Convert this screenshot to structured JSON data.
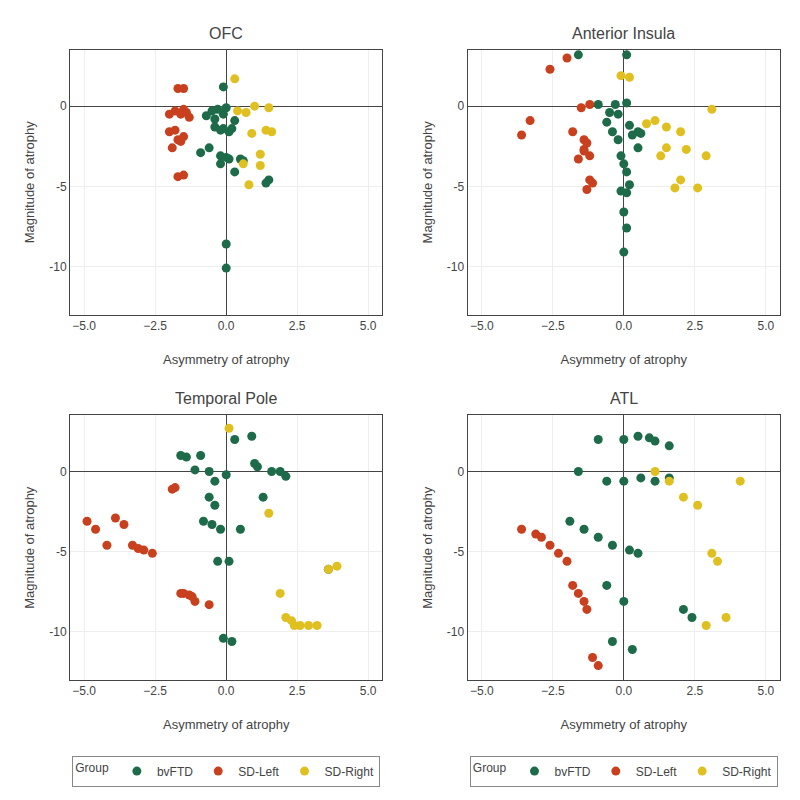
{
  "chart_data": [
    {
      "type": "scatter",
      "title": "OFC",
      "xlabel": "Asymmetry of atrophy",
      "ylabel": "Magnitude of atrophy",
      "xlim": [
        -5.5,
        5.5
      ],
      "ylim": [
        -13.0,
        3.5
      ],
      "xticks": [
        {
          "value": -5.0,
          "label": "−5.0"
        },
        {
          "value": -2.5,
          "label": "−2.5"
        },
        {
          "value": 0.0,
          "label": "0.0"
        },
        {
          "value": 2.5,
          "label": "2.5"
        },
        {
          "value": 5.0,
          "label": "5.0"
        }
      ],
      "yticks": [
        -10,
        -5,
        0
      ],
      "grid": true,
      "series": [
        {
          "name": "bvFTD",
          "color": "#1E6B4A",
          "x": [
            -0.1,
            0.0,
            -0.3,
            -0.5,
            -0.1,
            -0.7,
            -0.4,
            0.3,
            -0.4,
            -0.1,
            0.2,
            -0.2,
            0.1,
            -0.6,
            -0.9,
            -0.2,
            0.0,
            0.1,
            0.5,
            0.6,
            -0.2,
            0.3,
            1.5,
            1.4,
            0.0,
            0.0
          ],
          "values": [
            1.2,
            -0.1,
            -0.2,
            -0.3,
            -0.5,
            -0.6,
            -0.8,
            -0.9,
            -1.3,
            -1.4,
            -1.4,
            -1.5,
            -1.6,
            -2.6,
            -2.9,
            -3.1,
            -3.2,
            -3.3,
            -3.3,
            -3.4,
            -3.6,
            -4.1,
            -4.6,
            -4.8,
            -8.6,
            -10.1
          ]
        },
        {
          "name": "SD-Left",
          "color": "#C8401E",
          "x": [
            -1.7,
            -1.5,
            -1.5,
            -1.8,
            -1.6,
            -2.0,
            -1.4,
            -1.3,
            -1.8,
            -2.0,
            -1.5,
            -1.7,
            -1.6,
            -1.9,
            -1.5,
            -1.7
          ],
          "values": [
            1.1,
            1.1,
            -0.2,
            -0.3,
            -0.5,
            -0.5,
            -0.4,
            -0.7,
            -1.5,
            -1.6,
            -1.9,
            -2.1,
            -2.2,
            -2.6,
            -4.3,
            -4.4
          ]
        },
        {
          "name": "SD-Right",
          "color": "#E0C020",
          "x": [
            0.3,
            1.0,
            1.5,
            0.4,
            0.7,
            1.4,
            1.6,
            0.9,
            1.2,
            0.6,
            1.2,
            0.8
          ],
          "values": [
            1.7,
            -0.0,
            -0.1,
            -0.3,
            -0.4,
            -1.5,
            -1.6,
            -1.7,
            -3.0,
            -3.6,
            -3.7,
            -4.9
          ]
        }
      ]
    },
    {
      "type": "scatter",
      "title": "Anterior Insula",
      "xlabel": "Asymmetry of atrophy",
      "ylabel": "Magnitude of atrophy",
      "xlim": [
        -5.5,
        5.5
      ],
      "ylim": [
        -13.0,
        3.5
      ],
      "xticks": [
        {
          "value": -5.0,
          "label": "−5.0"
        },
        {
          "value": -2.5,
          "label": "−2.5"
        },
        {
          "value": 0.0,
          "label": "0.0"
        },
        {
          "value": 2.5,
          "label": "2.5"
        },
        {
          "value": 5.0,
          "label": "5.0"
        }
      ],
      "yticks": [
        -10,
        -5,
        0
      ],
      "grid": true,
      "series": [
        {
          "name": "bvFTD",
          "color": "#1E6B4A",
          "x": [
            -1.6,
            0.1,
            -0.9,
            -0.3,
            0.1,
            -0.5,
            -0.2,
            -0.6,
            0.2,
            -0.4,
            0.5,
            0.6,
            0.3,
            -0.2,
            0.5,
            -0.1,
            0.0,
            0.1,
            0.2,
            -0.1,
            0.1,
            0.0,
            0.1,
            0.0
          ],
          "values": [
            3.2,
            3.2,
            0.1,
            0.1,
            0.2,
            -0.4,
            -0.5,
            -1.0,
            -1.2,
            -1.6,
            -1.6,
            -1.7,
            -1.8,
            -2.1,
            -2.6,
            -3.1,
            -3.6,
            -4.1,
            -4.9,
            -5.3,
            -5.4,
            -6.6,
            -7.6,
            -9.1
          ]
        },
        {
          "name": "SD-Left",
          "color": "#C8401E",
          "x": [
            -2.6,
            -2.0,
            -3.3,
            -1.5,
            -1.2,
            -1.8,
            -3.6,
            -1.4,
            -1.3,
            -1.4,
            -1.4,
            -1.2,
            -1.6,
            -1.2,
            -1.1,
            -1.3
          ],
          "values": [
            2.3,
            3.0,
            -0.9,
            -0.1,
            0.1,
            -1.6,
            -1.8,
            -2.1,
            -2.3,
            -2.7,
            -2.8,
            -3.1,
            -3.3,
            -4.6,
            -4.8,
            -5.2
          ]
        },
        {
          "name": "SD-Right",
          "color": "#E0C020",
          "x": [
            -0.1,
            0.2,
            1.1,
            0.8,
            1.5,
            2.0,
            3.1,
            1.5,
            2.2,
            1.3,
            2.9,
            2.0,
            1.8,
            2.6
          ],
          "values": [
            1.9,
            1.8,
            -0.9,
            -1.1,
            -1.3,
            -1.6,
            -0.2,
            -2.6,
            -2.7,
            -3.1,
            -3.1,
            -4.6,
            -5.1,
            -5.1
          ]
        }
      ]
    },
    {
      "type": "scatter",
      "title": "Temporal Pole",
      "xlabel": "Asymmetry of atrophy",
      "ylabel": "Magnitude of atrophy",
      "xlim": [
        -5.5,
        5.5
      ],
      "ylim": [
        -13.0,
        3.5
      ],
      "xticks": [
        {
          "value": -5.0,
          "label": "−5.0"
        },
        {
          "value": -2.5,
          "label": "−2.5"
        },
        {
          "value": 0.0,
          "label": "0.0"
        },
        {
          "value": 2.5,
          "label": "2.5"
        },
        {
          "value": 5.0,
          "label": "5.0"
        }
      ],
      "yticks": [
        -10,
        -5,
        0
      ],
      "grid": true,
      "legend": "bottom",
      "legend_title": "Group",
      "series": [
        {
          "name": "bvFTD",
          "color": "#1E6B4A",
          "x": [
            -1.6,
            -1.4,
            -0.9,
            -0.6,
            -1.1,
            0.0,
            -0.4,
            0.3,
            0.9,
            -0.6,
            -0.4,
            -0.8,
            -0.5,
            -0.2,
            -0.3,
            0.1,
            0.5,
            1.0,
            1.1,
            1.3,
            1.6,
            1.9,
            2.1,
            3.6,
            -0.1,
            0.2
          ],
          "values": [
            1.0,
            0.9,
            1.0,
            0.0,
            0.1,
            -0.2,
            -0.6,
            2.0,
            2.2,
            -1.6,
            -2.1,
            -3.1,
            -3.3,
            -3.6,
            -5.6,
            -5.6,
            -3.6,
            0.5,
            0.3,
            -1.6,
            0.0,
            0.0,
            -0.3,
            -6.1,
            -10.4,
            -10.6
          ]
        },
        {
          "name": "SD-Left",
          "color": "#C8401E",
          "x": [
            -4.9,
            -4.6,
            -4.2,
            -3.9,
            -3.6,
            -3.3,
            -3.1,
            -2.9,
            -2.6,
            -1.9,
            -1.8,
            -1.6,
            -1.5,
            -1.3,
            -1.2,
            -1.1,
            -0.6
          ],
          "values": [
            -3.1,
            -3.6,
            -4.6,
            -2.9,
            -3.3,
            -4.6,
            -4.8,
            -4.9,
            -5.1,
            -1.1,
            -1.0,
            -7.6,
            -7.6,
            -7.7,
            -7.8,
            -8.1,
            -8.3
          ]
        },
        {
          "name": "SD-Right",
          "color": "#E0C020",
          "x": [
            0.1,
            1.5,
            1.9,
            2.1,
            2.3,
            2.4,
            2.6,
            2.9,
            3.2,
            3.6,
            3.9
          ],
          "values": [
            2.7,
            -2.6,
            -7.6,
            -9.1,
            -9.3,
            -9.6,
            -9.6,
            -9.6,
            -9.6,
            -6.1,
            -5.9
          ]
        }
      ]
    },
    {
      "type": "scatter",
      "title": "ATL",
      "xlabel": "Asymmetry of atrophy",
      "ylabel": "Magnitude of atrophy",
      "xlim": [
        -5.5,
        5.5
      ],
      "ylim": [
        -13.0,
        3.5
      ],
      "xticks": [
        {
          "value": -5.0,
          "label": "−5.0"
        },
        {
          "value": -2.5,
          "label": "−2.5"
        },
        {
          "value": 0.0,
          "label": "0.0"
        },
        {
          "value": 2.5,
          "label": "2.5"
        },
        {
          "value": 5.0,
          "label": "5.0"
        }
      ],
      "yticks": [
        -10,
        -5,
        0
      ],
      "grid": true,
      "legend": "bottom",
      "legend_title": "Group",
      "series": [
        {
          "name": "bvFTD",
          "color": "#1E6B4A",
          "x": [
            -0.9,
            0.0,
            0.5,
            0.9,
            1.1,
            1.6,
            -1.6,
            -0.6,
            0.0,
            0.6,
            1.1,
            1.6,
            -1.9,
            -1.4,
            -0.9,
            -0.4,
            0.2,
            0.5,
            -0.6,
            0.0,
            -0.4,
            0.3,
            2.1,
            2.4
          ],
          "values": [
            2.0,
            2.0,
            2.2,
            2.1,
            1.9,
            1.6,
            0.0,
            -0.6,
            -0.6,
            -0.4,
            -0.6,
            -0.4,
            -3.1,
            -3.6,
            -4.1,
            -4.6,
            -4.9,
            -5.1,
            -7.1,
            -8.1,
            -10.6,
            -11.1,
            -8.6,
            -9.1
          ]
        },
        {
          "name": "SD-Left",
          "color": "#C8401E",
          "x": [
            -3.6,
            -3.1,
            -2.9,
            -2.6,
            -2.3,
            -2.0,
            -1.8,
            -1.6,
            -1.4,
            -1.3,
            -1.1,
            -0.9
          ],
          "values": [
            -3.6,
            -3.9,
            -4.1,
            -4.6,
            -5.1,
            -5.6,
            -7.1,
            -7.6,
            -8.1,
            -8.6,
            -11.6,
            -12.1
          ]
        },
        {
          "name": "SD-Right",
          "color": "#E0C020",
          "x": [
            1.1,
            1.6,
            2.1,
            2.6,
            2.9,
            3.1,
            3.3,
            3.6,
            4.1
          ],
          "values": [
            0.0,
            -0.6,
            -1.6,
            -2.1,
            -9.6,
            -5.1,
            -5.6,
            -9.1,
            -0.6
          ]
        }
      ]
    }
  ]
}
